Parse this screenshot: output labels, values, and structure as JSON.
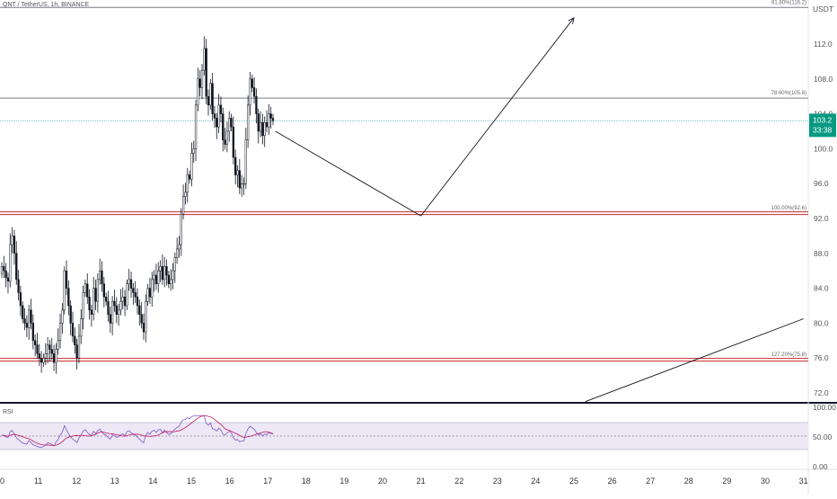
{
  "header": {
    "symbol": "QNT / TetherUS, 1h, BINANCE",
    "currency": "USDT"
  },
  "price_badge": {
    "price": "103.2",
    "countdown": "33:38",
    "color": "#089981"
  },
  "rsi_pane": {
    "label": "RSI",
    "ticks": [
      "100.00",
      "50.00",
      "0.00"
    ]
  },
  "colors": {
    "candle": "#131722",
    "fib_gray": "#787b86",
    "fib_red": "#c62828",
    "rsi_line": "#7e57c2",
    "rsi_ma": "#c2185b",
    "rsi_band": "#ede7f6",
    "current_line": "#26a69a"
  },
  "chart_data": {
    "type": "candlestick",
    "ylim": [
      70.0,
      116.0
    ],
    "y_ticks": [
      "112.0",
      "108.0",
      "104.0",
      "100.0",
      "96.0",
      "92.0",
      "88.0",
      "84.0",
      "80.0",
      "76.0",
      "72.0"
    ],
    "x_ticks": [
      "10",
      "11",
      "12",
      "13",
      "14",
      "15",
      "16",
      "17",
      "18",
      "19",
      "20",
      "21",
      "22",
      "23",
      "24",
      "25",
      "26",
      "27",
      "28",
      "29",
      "30",
      "31"
    ],
    "fib_levels": [
      {
        "label": "61.80%(116.2)",
        "value": 116.2,
        "color": "#787b86"
      },
      {
        "label": "78.60%(105.8)",
        "value": 105.8,
        "color": "#787b86"
      },
      {
        "label": "100.00%(92.6)",
        "value": 92.6,
        "color": "#c62828"
      },
      {
        "label": "127.20%(75.8)",
        "value": 75.8,
        "color": "#c62828"
      }
    ],
    "current_price": 103.2,
    "closes": [
      86.5,
      86.0,
      85.2,
      84.8,
      89.0,
      90.0,
      88.0,
      85.0,
      83.5,
      82.0,
      80.5,
      80.0,
      79.5,
      81.5,
      80.0,
      78.0,
      77.5,
      76.5,
      76.0,
      75.5,
      76.0,
      76.5,
      77.5,
      77.0,
      76.5,
      75.5,
      77.0,
      78.0,
      80.0,
      81.5,
      86.0,
      84.0,
      82.0,
      80.0,
      78.5,
      77.5,
      76.0,
      78.5,
      80.5,
      83.5,
      84.5,
      83.0,
      81.5,
      81.0,
      84.0,
      82.5,
      85.0,
      86.0,
      84.5,
      83.0,
      82.5,
      81.0,
      80.0,
      82.5,
      82.0,
      81.0,
      81.5,
      82.5,
      83.0,
      82.0,
      84.5,
      85.0,
      84.0,
      83.5,
      83.0,
      82.0,
      81.0,
      80.0,
      79.0,
      82.5,
      84.0,
      83.0,
      85.0,
      85.5,
      84.5,
      86.0,
      86.5,
      85.0,
      86.5,
      85.5,
      84.5,
      85.0,
      86.0,
      87.5,
      88.5,
      89.0,
      92.5,
      94.5,
      95.0,
      97.0,
      96.5,
      99.5,
      100.0,
      105.0,
      108.0,
      107.0,
      109.0,
      111.5,
      106.0,
      105.0,
      107.5,
      104.0,
      103.5,
      102.5,
      105.0,
      104.0,
      101.0,
      100.5,
      102.0,
      103.5,
      102.5,
      99.0,
      97.0,
      97.5,
      95.5,
      96.0,
      96.0,
      101.0,
      105.0,
      108.0,
      107.0,
      106.0,
      104.0,
      102.0,
      103.0,
      101.5,
      103.0,
      102.5,
      104.0,
      103.5,
      103.2
    ],
    "projection_lines": [
      {
        "from": [
          "17.2",
          102.0
        ],
        "to": [
          "21",
          92.3
        ],
        "arrow": false
      },
      {
        "from": [
          "21",
          92.3
        ],
        "to": [
          "25",
          115.0
        ],
        "arrow": true
      },
      {
        "from": [
          "25.3",
          71.0
        ],
        "to": [
          "31",
          80.5
        ],
        "arrow": false
      }
    ],
    "rsi": {
      "ylim": [
        0,
        100
      ],
      "bands": [
        30,
        70
      ],
      "mid": 50
    }
  }
}
